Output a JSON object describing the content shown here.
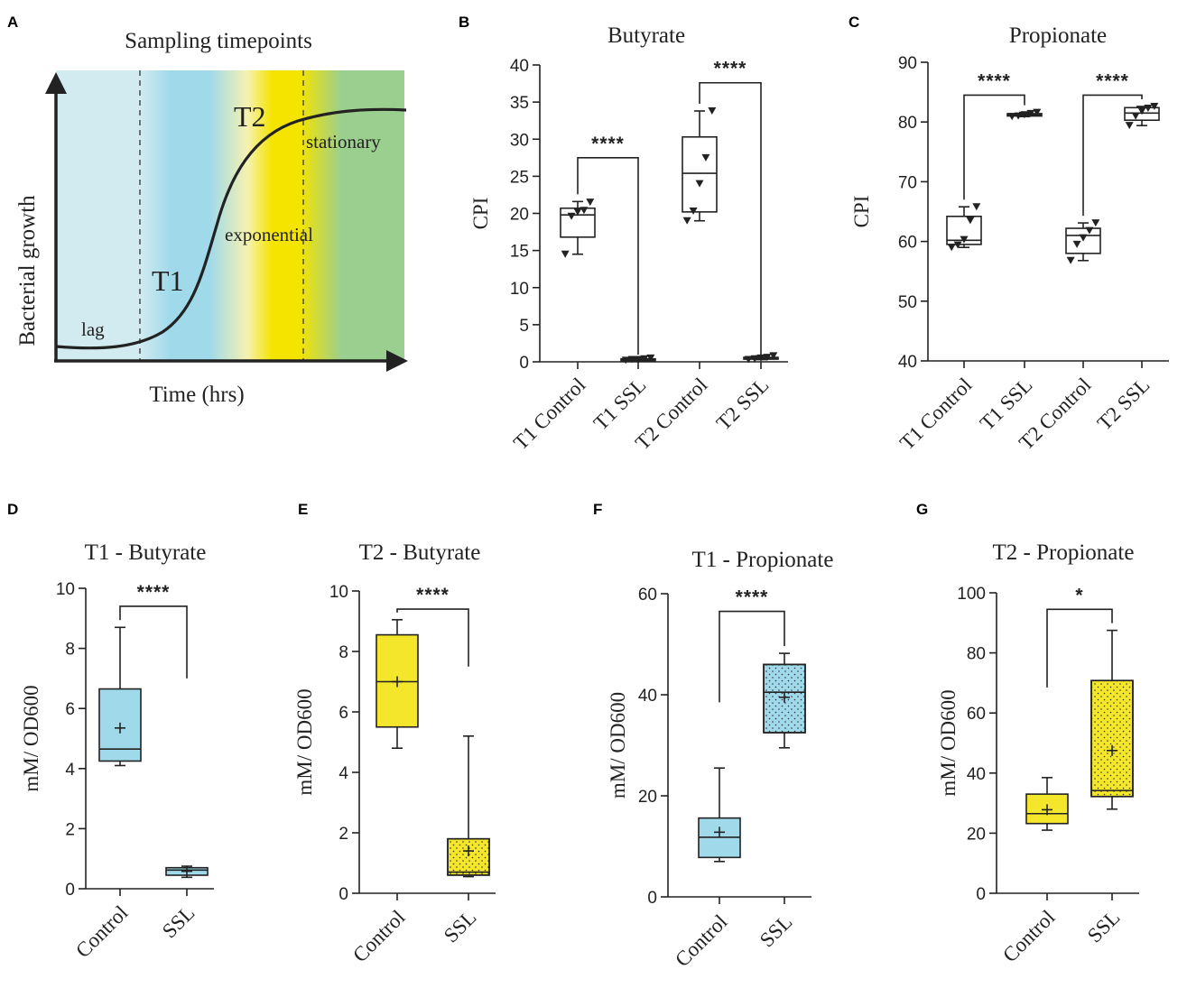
{
  "panels": {
    "A": {
      "letter": "A",
      "title": "Sampling timepoints",
      "xlabel": "Time (hrs)",
      "ylabel": "Bacterial growth",
      "labels": {
        "lag": "lag",
        "t1": "T1",
        "t2": "T2",
        "exponential": "exponential",
        "stationary": "stationary"
      },
      "colors": {
        "lag": "#d2ebf0",
        "t1": "#9fd9ea",
        "t2": "#f4e400",
        "stationary": "#9bcf8f"
      }
    },
    "B": {
      "letter": "B"
    },
    "C": {
      "letter": "C"
    },
    "D": {
      "letter": "D"
    },
    "E": {
      "letter": "E"
    },
    "F": {
      "letter": "F"
    },
    "G": {
      "letter": "G"
    }
  },
  "chart_data": [
    {
      "id": "B",
      "type": "box",
      "title": "Butyrate",
      "ylabel": "CPI",
      "xlabel": "",
      "ylim": [
        0,
        40
      ],
      "yticks": [
        0,
        5,
        10,
        15,
        20,
        25,
        30,
        35,
        40
      ],
      "categories": [
        "T1 Control",
        "T1 SSL",
        "T2 Control",
        "T2 SSL"
      ],
      "box_fill": "#ffffff",
      "boxes": [
        {
          "min": 14.5,
          "q1": 16.8,
          "median": 19.8,
          "q3": 20.7,
          "max": 21.6,
          "points": [
            14.5,
            19.6,
            20.2,
            20.4,
            21.5
          ]
        },
        {
          "min": 0.2,
          "q1": 0.2,
          "median": 0.3,
          "q3": 0.4,
          "max": 0.5,
          "points": [
            0.2,
            0.3,
            0.3,
            0.4,
            0.5
          ]
        },
        {
          "min": 19.0,
          "q1": 20.2,
          "median": 25.4,
          "q3": 30.3,
          "max": 33.8,
          "points": [
            19.0,
            20.3,
            24.0,
            27.5,
            33.8
          ]
        },
        {
          "min": 0.3,
          "q1": 0.4,
          "median": 0.5,
          "q3": 0.6,
          "max": 0.8,
          "points": [
            0.3,
            0.4,
            0.5,
            0.6,
            0.8
          ]
        }
      ],
      "significance": [
        {
          "from": 0,
          "to": 1,
          "label": "****"
        },
        {
          "from": 2,
          "to": 3,
          "label": "****"
        }
      ]
    },
    {
      "id": "C",
      "type": "box",
      "title": "Propionate",
      "ylabel": "CPI",
      "xlabel": "",
      "ylim": [
        40,
        90
      ],
      "yticks": [
        40,
        50,
        60,
        70,
        80,
        90
      ],
      "categories": [
        "T1 Control",
        "T1 SSL",
        "T2 Control",
        "T2 SSL"
      ],
      "box_fill": "#ffffff",
      "boxes": [
        {
          "min": 59.0,
          "q1": 59.5,
          "median": 60.2,
          "q3": 64.2,
          "max": 65.8,
          "points": [
            59.0,
            59.4,
            60.3,
            63.5,
            65.8
          ]
        },
        {
          "min": 80.9,
          "q1": 81.0,
          "median": 81.2,
          "q3": 81.4,
          "max": 81.6,
          "points": [
            80.9,
            81.0,
            81.2,
            81.4,
            81.6
          ]
        },
        {
          "min": 56.8,
          "q1": 58.0,
          "median": 61.0,
          "q3": 62.2,
          "max": 63.1,
          "points": [
            56.8,
            59.5,
            60.6,
            61.8,
            63.1
          ]
        },
        {
          "min": 79.4,
          "q1": 80.3,
          "median": 81.5,
          "q3": 82.4,
          "max": 82.6,
          "points": [
            79.4,
            81.0,
            81.8,
            82.3,
            82.6
          ]
        }
      ],
      "significance": [
        {
          "from": 0,
          "to": 1,
          "label": "****"
        },
        {
          "from": 2,
          "to": 3,
          "label": "****"
        }
      ]
    },
    {
      "id": "D",
      "type": "box",
      "title": "T1 - Butyrate",
      "ylabel": "mM/ OD600",
      "xlabel": "",
      "ylim": [
        0,
        10
      ],
      "yticks": [
        0,
        2,
        4,
        6,
        8,
        10
      ],
      "categories": [
        "Control",
        "SSL"
      ],
      "box_fill": "#9fd9ea",
      "pattern": [
        false,
        false
      ],
      "boxes": [
        {
          "min": 4.1,
          "q1": 4.25,
          "median": 4.65,
          "q3": 6.65,
          "max": 8.7,
          "mean": 5.35
        },
        {
          "min": 0.38,
          "q1": 0.45,
          "median": 0.62,
          "q3": 0.7,
          "max": 0.75,
          "mean": 0.58
        }
      ],
      "significance": [
        {
          "from": 0,
          "to": 1,
          "label": "****"
        }
      ]
    },
    {
      "id": "E",
      "type": "box",
      "title": "T2 - Butyrate",
      "ylabel": "mM/ OD600",
      "xlabel": "",
      "ylim": [
        0,
        10
      ],
      "yticks": [
        0,
        2,
        4,
        6,
        8,
        10
      ],
      "categories": [
        "Control",
        "SSL"
      ],
      "box_fill": "#f4e62a",
      "pattern": [
        false,
        true
      ],
      "boxes": [
        {
          "min": 4.8,
          "q1": 5.5,
          "median": 7.0,
          "q3": 8.55,
          "max": 9.05,
          "mean": 7.0
        },
        {
          "min": 0.55,
          "q1": 0.6,
          "median": 0.7,
          "q3": 1.8,
          "max": 5.2,
          "mean": 1.4
        }
      ],
      "significance": [
        {
          "from": 0,
          "to": 1,
          "label": "****"
        }
      ]
    },
    {
      "id": "F",
      "type": "box",
      "title": "T1 - Propionate",
      "ylabel": "mM/ OD600",
      "xlabel": "",
      "ylim": [
        0,
        60
      ],
      "yticks": [
        0,
        20,
        40,
        60
      ],
      "categories": [
        "Control",
        "SSL"
      ],
      "box_fill": "#9fd9ea",
      "pattern": [
        false,
        true
      ],
      "boxes": [
        {
          "min": 7.0,
          "q1": 7.8,
          "median": 11.8,
          "q3": 15.6,
          "max": 25.5,
          "mean": 12.8
        },
        {
          "min": 29.5,
          "q1": 32.5,
          "median": 40.5,
          "q3": 46.0,
          "max": 48.2,
          "mean": 39.5
        }
      ],
      "significance": [
        {
          "from": 0,
          "to": 1,
          "label": "****"
        }
      ]
    },
    {
      "id": "G",
      "type": "box",
      "title": "T2 - Propionate",
      "ylabel": "mM/ OD600",
      "xlabel": "",
      "ylim": [
        0,
        100
      ],
      "yticks": [
        0,
        20,
        40,
        60,
        80,
        100
      ],
      "categories": [
        "Control",
        "SSL"
      ],
      "box_fill": "#f4e62a",
      "pattern": [
        false,
        true
      ],
      "boxes": [
        {
          "min": 21.0,
          "q1": 23.2,
          "median": 26.5,
          "q3": 33.0,
          "max": 38.5,
          "mean": 27.8
        },
        {
          "min": 28.0,
          "q1": 32.2,
          "median": 34.2,
          "q3": 70.8,
          "max": 87.5,
          "mean": 47.5
        }
      ],
      "significance": [
        {
          "from": 0,
          "to": 1,
          "label": "*"
        }
      ]
    }
  ]
}
